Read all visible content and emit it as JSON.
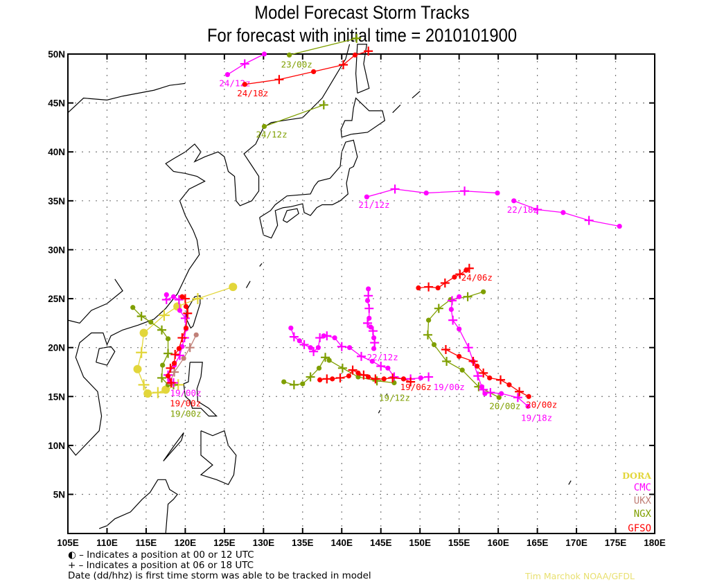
{
  "chart_data": {
    "type": "line",
    "title": "Model Forecast Storm Tracks",
    "subtitle": "For forecast with initial time = 2010101900",
    "xlim": [
      105,
      180
    ],
    "ylim": [
      1,
      50
    ],
    "grid": true,
    "x_ticks": [
      "105E",
      "110E",
      "115E",
      "120E",
      "125E",
      "130E",
      "135E",
      "140E",
      "145E",
      "150E",
      "155E",
      "160E",
      "165E",
      "170E",
      "175E",
      "180E"
    ],
    "y_ticks": [
      "50N",
      "45N",
      "40N",
      "35N",
      "30N",
      "25N",
      "20N",
      "15N",
      "10N",
      "5N"
    ],
    "legend_position": "bottom-right",
    "models": [
      {
        "name": "DORA",
        "color": "#e2d63a"
      },
      {
        "name": "CMC",
        "color": "#ff00ff"
      },
      {
        "name": "UKX",
        "color": "#c08078"
      },
      {
        "name": "NGX",
        "color": "#7f9f00"
      },
      {
        "name": "GFSO",
        "color": "#ff0000"
      }
    ],
    "tracks": [
      {
        "model": "CMC",
        "label": "24/12z",
        "label_at": 0,
        "points": [
          [
            125.4,
            47.9
          ],
          [
            127.6,
            49.0
          ],
          [
            130.1,
            50.0
          ]
        ]
      },
      {
        "model": "GFSO",
        "label": "24/18z",
        "label_at": 0,
        "points": [
          [
            127.6,
            46.9
          ],
          [
            132.0,
            47.4
          ],
          [
            136.4,
            48.2
          ],
          [
            140.2,
            48.9
          ],
          [
            141.7,
            49.9
          ],
          [
            143.4,
            50.3
          ]
        ]
      },
      {
        "model": "NGX",
        "label": "23/00z",
        "label_at": 0,
        "points": [
          [
            133.3,
            49.9
          ],
          [
            141.9,
            51.6
          ]
        ]
      },
      {
        "model": "NGX",
        "label": "24/12z",
        "label_at": 0,
        "points": [
          [
            130.1,
            42.6
          ],
          [
            137.7,
            44.8
          ]
        ]
      },
      {
        "model": "CMC",
        "label": "21/12z",
        "label_at": 0,
        "points": [
          [
            143.2,
            35.4
          ],
          [
            146.8,
            36.2
          ],
          [
            150.8,
            35.8
          ],
          [
            155.7,
            36.0
          ],
          [
            159.9,
            35.8
          ]
        ]
      },
      {
        "model": "CMC",
        "label": "22/18z",
        "label_at": 0,
        "points": [
          [
            162.0,
            35.0
          ],
          [
            165.0,
            34.1
          ],
          [
            168.3,
            33.8
          ],
          [
            171.6,
            33.0
          ],
          [
            175.5,
            32.4
          ]
        ]
      },
      {
        "model": "GFSO",
        "label": "24/06z",
        "label_at": 5,
        "points": [
          [
            149.8,
            26.1
          ],
          [
            151.1,
            26.2
          ],
          [
            152.3,
            26.1
          ],
          [
            153.2,
            26.6
          ],
          [
            154.4,
            27.2
          ],
          [
            155.1,
            27.5
          ],
          [
            155.9,
            27.9
          ],
          [
            156.3,
            28.1
          ]
        ]
      },
      {
        "model": "NGX",
        "label": "20/00z",
        "label_at": 0,
        "points": [
          [
            160.1,
            14.9
          ],
          [
            157.5,
            16.0
          ],
          [
            155.4,
            17.7
          ],
          [
            153.4,
            18.6
          ],
          [
            151.8,
            20.3
          ],
          [
            151.0,
            21.3
          ],
          [
            151.1,
            22.8
          ],
          [
            152.4,
            24.0
          ],
          [
            153.9,
            24.9
          ],
          [
            156.1,
            25.2
          ],
          [
            158.1,
            25.7
          ]
        ]
      },
      {
        "model": "CMC",
        "label": "19/18z",
        "label_at": 0,
        "points": [
          [
            163.8,
            14.0
          ],
          [
            162.5,
            14.9
          ],
          [
            160.4,
            15.3
          ],
          [
            159.0,
            15.4
          ],
          [
            158.3,
            15.3
          ],
          [
            158.1,
            15.7
          ],
          [
            157.9,
            16.0
          ],
          [
            157.4,
            17.1
          ],
          [
            156.8,
            18.6
          ],
          [
            156.2,
            20.0
          ],
          [
            155.0,
            21.9
          ],
          [
            154.2,
            22.8
          ],
          [
            154.0,
            23.9
          ],
          [
            154.1,
            24.8
          ],
          [
            155.0,
            25.2
          ]
        ]
      },
      {
        "model": "GFSO",
        "label": "20/00z",
        "label_at": 0,
        "points": [
          [
            163.9,
            15.0
          ],
          [
            162.7,
            15.5
          ],
          [
            161.4,
            16.2
          ],
          [
            160.3,
            16.7
          ],
          [
            158.9,
            16.9
          ],
          [
            158.1,
            17.4
          ],
          [
            157.3,
            18.1
          ],
          [
            156.8,
            18.6
          ],
          [
            155.0,
            19.1
          ],
          [
            153.3,
            19.8
          ]
        ]
      },
      {
        "model": "CMC",
        "label": "19/00z",
        "label_at": 21,
        "points": [
          [
            133.5,
            22.0
          ],
          [
            133.9,
            21.1
          ],
          [
            134.6,
            20.7
          ],
          [
            135.2,
            20.3
          ],
          [
            136.0,
            20.0
          ],
          [
            136.4,
            19.6
          ],
          [
            137.0,
            20.0
          ],
          [
            137.2,
            21.0
          ],
          [
            137.7,
            21.2
          ],
          [
            138.1,
            21.2
          ],
          [
            139.1,
            21.0
          ],
          [
            140.0,
            20.1
          ],
          [
            141.0,
            20.0
          ],
          [
            142.5,
            19.1
          ],
          [
            143.9,
            18.6
          ],
          [
            145.0,
            18.1
          ],
          [
            145.9,
            17.9
          ],
          [
            146.7,
            17.0
          ],
          [
            147.9,
            16.8
          ],
          [
            148.8,
            16.8
          ],
          [
            150.1,
            16.9
          ],
          [
            151.1,
            17.0
          ]
        ]
      },
      {
        "model": "CMC",
        "label": "22/12z",
        "label_at": 10,
        "points": [
          [
            143.4,
            26.0
          ],
          [
            143.4,
            25.3
          ],
          [
            143.3,
            24.8
          ],
          [
            143.5,
            24.0
          ],
          [
            143.5,
            23.0
          ],
          [
            143.3,
            22.5
          ],
          [
            143.7,
            22.1
          ],
          [
            144.0,
            21.7
          ],
          [
            144.1,
            21.0
          ],
          [
            144.2,
            20.5
          ],
          [
            144.1,
            19.9
          ]
        ]
      },
      {
        "model": "NGX",
        "label": "19/12z",
        "label_at": 10,
        "points": [
          [
            132.6,
            16.5
          ],
          [
            133.9,
            16.2
          ],
          [
            135.0,
            16.3
          ],
          [
            136.0,
            17.0
          ],
          [
            137.1,
            17.9
          ],
          [
            137.9,
            19.0
          ],
          [
            138.4,
            18.7
          ],
          [
            140.1,
            17.9
          ],
          [
            142.1,
            17.0
          ],
          [
            144.5,
            16.6
          ],
          [
            146.7,
            16.4
          ]
        ]
      },
      {
        "model": "GFSO",
        "label": "19/06z",
        "label_at": 13,
        "points": [
          [
            137.2,
            16.7
          ],
          [
            138.1,
            16.8
          ],
          [
            138.8,
            16.8
          ],
          [
            139.8,
            16.9
          ],
          [
            140.9,
            17.1
          ],
          [
            141.4,
            17.7
          ],
          [
            142.1,
            17.4
          ],
          [
            142.8,
            17.2
          ],
          [
            143.4,
            17.0
          ],
          [
            144.3,
            16.8
          ],
          [
            145.4,
            16.8
          ],
          [
            146.5,
            16.9
          ],
          [
            147.9,
            16.8
          ],
          [
            148.8,
            16.5
          ]
        ]
      },
      {
        "model": "DORA",
        "label": "",
        "label_at": 0,
        "points": [
          [
            126.1,
            26.2
          ],
          [
            121.6,
            25.0
          ],
          [
            119.0,
            24.2
          ],
          [
            117.3,
            23.3
          ],
          [
            114.7,
            21.5
          ],
          [
            114.4,
            19.5
          ],
          [
            113.9,
            17.8
          ],
          [
            114.7,
            16.2
          ],
          [
            115.2,
            15.3
          ],
          [
            116.5,
            15.4
          ],
          [
            117.5,
            15.7
          ],
          [
            119.1,
            16.2
          ]
        ]
      },
      {
        "model": "NGX",
        "label": "19/00z",
        "label_at": 9,
        "points": [
          [
            113.3,
            24.1
          ],
          [
            114.4,
            23.2
          ],
          [
            115.6,
            22.6
          ],
          [
            117.0,
            21.8
          ],
          [
            117.8,
            20.9
          ],
          [
            117.8,
            19.4
          ],
          [
            117.1,
            18.2
          ],
          [
            117.0,
            16.9
          ],
          [
            117.8,
            16.2
          ],
          [
            118.5,
            16.2
          ]
        ]
      },
      {
        "model": "UKX",
        "label": "",
        "label_at": 0,
        "points": [
          [
            121.4,
            21.3
          ],
          [
            120.6,
            20.0
          ],
          [
            119.8,
            18.9
          ],
          [
            118.6,
            17.5
          ],
          [
            118.0,
            16.4
          ]
        ]
      },
      {
        "model": "CMC",
        "label": "19/00z",
        "label_at": 13,
        "points": [
          [
            117.6,
            25.4
          ],
          [
            117.6,
            24.9
          ],
          [
            118.5,
            25.2
          ],
          [
            119.2,
            24.9
          ],
          [
            119.3,
            23.8
          ],
          [
            120.0,
            23.0
          ],
          [
            120.1,
            21.9
          ],
          [
            119.9,
            21.0
          ],
          [
            119.6,
            20.1
          ],
          [
            119.3,
            19.2
          ],
          [
            118.6,
            18.2
          ],
          [
            117.8,
            17.2
          ],
          [
            118.0,
            16.7
          ],
          [
            118.5,
            16.4
          ]
        ]
      },
      {
        "model": "GFSO",
        "label": "19/00z",
        "label_at": 11,
        "points": [
          [
            119.6,
            25.2
          ],
          [
            120.0,
            25.0
          ],
          [
            120.1,
            24.2
          ],
          [
            120.3,
            23.5
          ],
          [
            120.1,
            22.0
          ],
          [
            119.6,
            21.0
          ],
          [
            119.2,
            19.9
          ],
          [
            118.7,
            19.3
          ],
          [
            118.6,
            18.4
          ],
          [
            118.1,
            17.9
          ],
          [
            117.8,
            17.1
          ],
          [
            118.2,
            16.4
          ]
        ]
      }
    ]
  },
  "footer": {
    "line1": "◐ – Indicates a position at 00 or 12 UTC",
    "line2": "+ – Indicates a position at 06 or 18 UTC",
    "line3": "Date (dd/hhz) is first time storm was able to be tracked in model",
    "credit": "Tim Marchok NOAA/GFDL"
  }
}
